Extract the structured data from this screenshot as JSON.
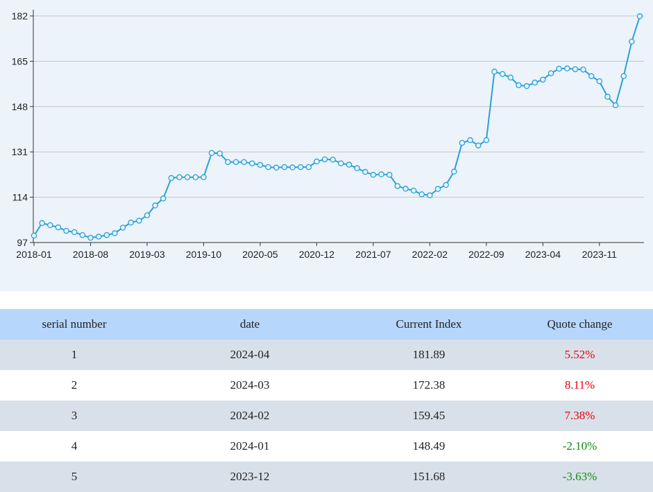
{
  "chart_data": {
    "type": "line",
    "title": "",
    "xlabel": "",
    "ylabel": "",
    "ylim": [
      97,
      182
    ],
    "yticks": [
      "97",
      "114",
      "131",
      "148",
      "165",
      "182"
    ],
    "xticks": [
      "2018-01",
      "2018-08",
      "2019-03",
      "2019-10",
      "2020-05",
      "2020-12",
      "2021-07",
      "2022-02",
      "2022-09",
      "2023-04",
      "2023-11"
    ],
    "grid": "horizontal",
    "line_color": "#2a9fd8",
    "marker_fill": "#e6f6fd",
    "x": [
      "2018-01",
      "2018-02",
      "2018-03",
      "2018-04",
      "2018-05",
      "2018-06",
      "2018-07",
      "2018-08",
      "2018-09",
      "2018-10",
      "2018-11",
      "2018-12",
      "2019-01",
      "2019-02",
      "2019-03",
      "2019-04",
      "2019-05",
      "2019-06",
      "2019-07",
      "2019-08",
      "2019-09",
      "2019-10",
      "2019-11",
      "2019-12",
      "2020-01",
      "2020-02",
      "2020-03",
      "2020-04",
      "2020-05",
      "2020-06",
      "2020-07",
      "2020-08",
      "2020-09",
      "2020-10",
      "2020-11",
      "2020-12",
      "2021-01",
      "2021-02",
      "2021-03",
      "2021-04",
      "2021-05",
      "2021-06",
      "2021-07",
      "2021-08",
      "2021-09",
      "2021-10",
      "2021-11",
      "2021-12",
      "2022-01",
      "2022-02",
      "2022-03",
      "2022-04",
      "2022-05",
      "2022-06",
      "2022-07",
      "2022-08",
      "2022-09",
      "2022-10",
      "2022-11",
      "2022-12",
      "2023-01",
      "2023-02",
      "2023-03",
      "2023-04",
      "2023-05",
      "2023-06",
      "2023-07",
      "2023-08",
      "2023-09",
      "2023-10",
      "2023-11",
      "2023-12",
      "2024-01",
      "2024-02",
      "2024-03",
      "2024-04"
    ],
    "values": [
      99.6,
      104.3,
      103.5,
      102.7,
      101.4,
      100.9,
      99.8,
      98.8,
      99.2,
      99.8,
      100.5,
      102.6,
      104.5,
      105.2,
      107.2,
      110.9,
      113.5,
      121.2,
      121.5,
      121.5,
      121.5,
      121.5,
      130.6,
      130.4,
      127.2,
      127.2,
      127.2,
      126.7,
      126.1,
      125.3,
      125.1,
      125.3,
      125.2,
      125.3,
      125.3,
      127.4,
      128.2,
      128.1,
      126.7,
      126.2,
      124.9,
      123.5,
      122.4,
      122.6,
      122.4,
      118.2,
      117.2,
      116.5,
      115.1,
      114.7,
      117.1,
      118.6,
      123.6,
      134.4,
      135.4,
      133.4,
      135.4,
      161.1,
      160.2,
      158.9,
      156.0,
      155.7,
      157.0,
      158.1,
      160.5,
      162.2,
      162.3,
      162.0,
      161.9,
      159.4,
      157.5,
      151.68,
      148.49,
      159.45,
      172.38,
      181.89
    ]
  },
  "table": {
    "headers": [
      "serial number",
      "date",
      "Current Index",
      "Quote change"
    ],
    "rows": [
      {
        "serial": "1",
        "date": "2024-04",
        "index": "181.89",
        "change": "5.52%",
        "direction": "up"
      },
      {
        "serial": "2",
        "date": "2024-03",
        "index": "172.38",
        "change": "8.11%",
        "direction": "up"
      },
      {
        "serial": "3",
        "date": "2024-02",
        "index": "159.45",
        "change": "7.38%",
        "direction": "up"
      },
      {
        "serial": "4",
        "date": "2024-01",
        "index": "148.49",
        "change": "-2.10%",
        "direction": "down"
      },
      {
        "serial": "5",
        "date": "2023-12",
        "index": "151.68",
        "change": "-3.63%",
        "direction": "down"
      }
    ],
    "up_color": "#e8000b",
    "down_color": "#118a11",
    "header_bg": "#b7d6fb"
  }
}
